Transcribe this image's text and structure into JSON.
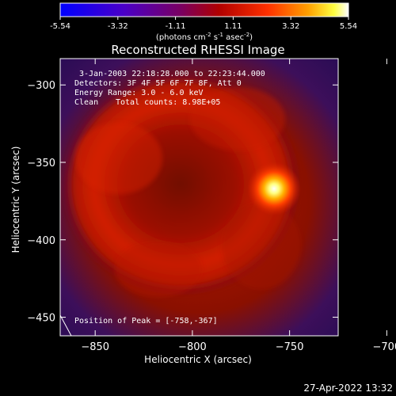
{
  "colorbar": {
    "ticks": [
      "-5.54",
      "-3.32",
      "-1.11",
      "1.11",
      "3.32",
      "5.54"
    ],
    "unit_parts": [
      "(photons cm",
      "-2",
      " s",
      "-1",
      " asec",
      "-2",
      ")"
    ]
  },
  "chart_data": {
    "type": "heatmap",
    "title": "Reconstructed RHESSI Image",
    "xlabel": "Heliocentric X (arcsec)",
    "ylabel": "Heliocentric Y (arcsec)",
    "xlim": [
      -868,
      -725
    ],
    "ylim": [
      -462,
      -283
    ],
    "xticks": [
      -850,
      -800,
      -750,
      -700
    ],
    "yticks": [
      -300,
      -350,
      -400,
      -450
    ],
    "clim": [
      -5.54,
      5.54
    ],
    "colormap": "fire (blue-purple-red-orange-yellow-white)",
    "peak": {
      "x": -758,
      "y": -367
    },
    "annotations": {
      "time": "3-Jan-2003 22:18:28.000 to 22:23:44.000",
      "detectors": "Detectors: 3F 4F 5F 6F 7F 8F, Att 0",
      "energy": "Energy Range: 3.0 - 6.0 keV",
      "clean_method": "Clean",
      "total_counts": "Total counts: 8.98E+05",
      "peak_position": "Position of Peak = [-758,-367]"
    }
  },
  "footer": {
    "timestamp": "27-Apr-2022 13:32"
  },
  "colors": {
    "background": "#000000",
    "outer": "#3a1060",
    "ring": "#c81a00",
    "gap": "#7a0a00",
    "core": "#ffffff"
  }
}
